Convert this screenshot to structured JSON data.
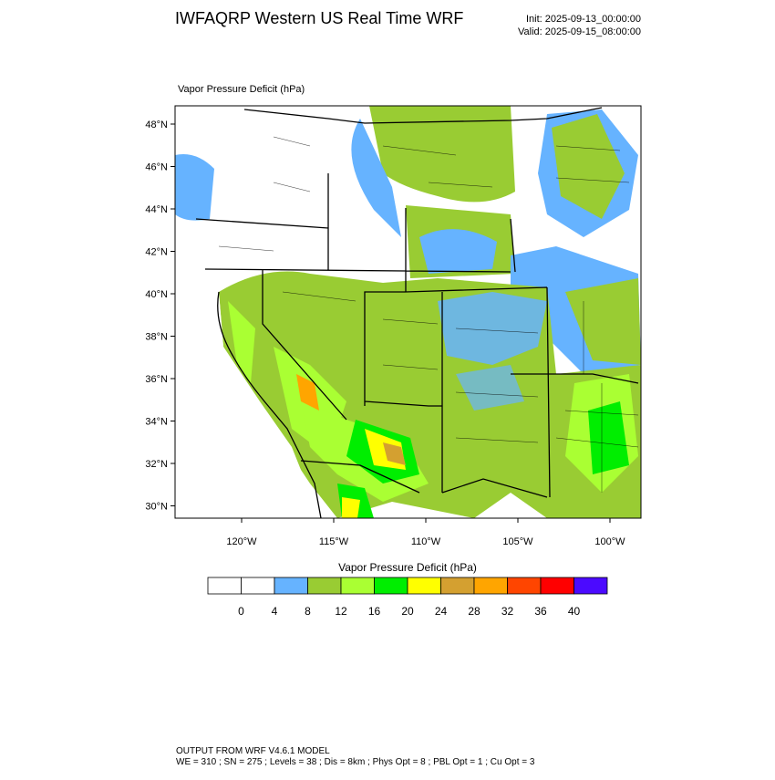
{
  "header": {
    "title": "IWFAQRP Western US Real Time WRF",
    "init": "Init: 2025-09-13_00:00:00",
    "valid": "Valid: 2025-09-15_08:00:00"
  },
  "map": {
    "title": "Vapor Pressure Deficit   (hPa)",
    "lat_labels": [
      "48°N",
      "46°N",
      "44°N",
      "42°N",
      "40°N",
      "38°N",
      "36°N",
      "34°N",
      "32°N",
      "30°N"
    ],
    "lon_labels": [
      "120°W",
      "115°W",
      "110°W",
      "105°W",
      "100°W"
    ]
  },
  "colorbar": {
    "title": "Vapor Pressure Deficit  (hPa)",
    "labels": [
      "0",
      "4",
      "8",
      "12",
      "16",
      "20",
      "24",
      "28",
      "32",
      "36",
      "40"
    ],
    "colors": [
      "#ffffff",
      "#ffffff",
      "#66b3ff",
      "#99cc33",
      "#aaff33",
      "#00ee00",
      "#ffff00",
      "#d4a030",
      "#ffa500",
      "#ff4500",
      "#ff0000",
      "#4b0aff"
    ]
  },
  "footer": {
    "line1": "OUTPUT FROM WRF V4.6.1 MODEL",
    "line2": "WE = 310 ; SN = 275 ; Levels = 38 ; Dis = 8km ; Phys Opt = 8 ; PBL Opt = 1 ; Cu Opt = 3"
  }
}
